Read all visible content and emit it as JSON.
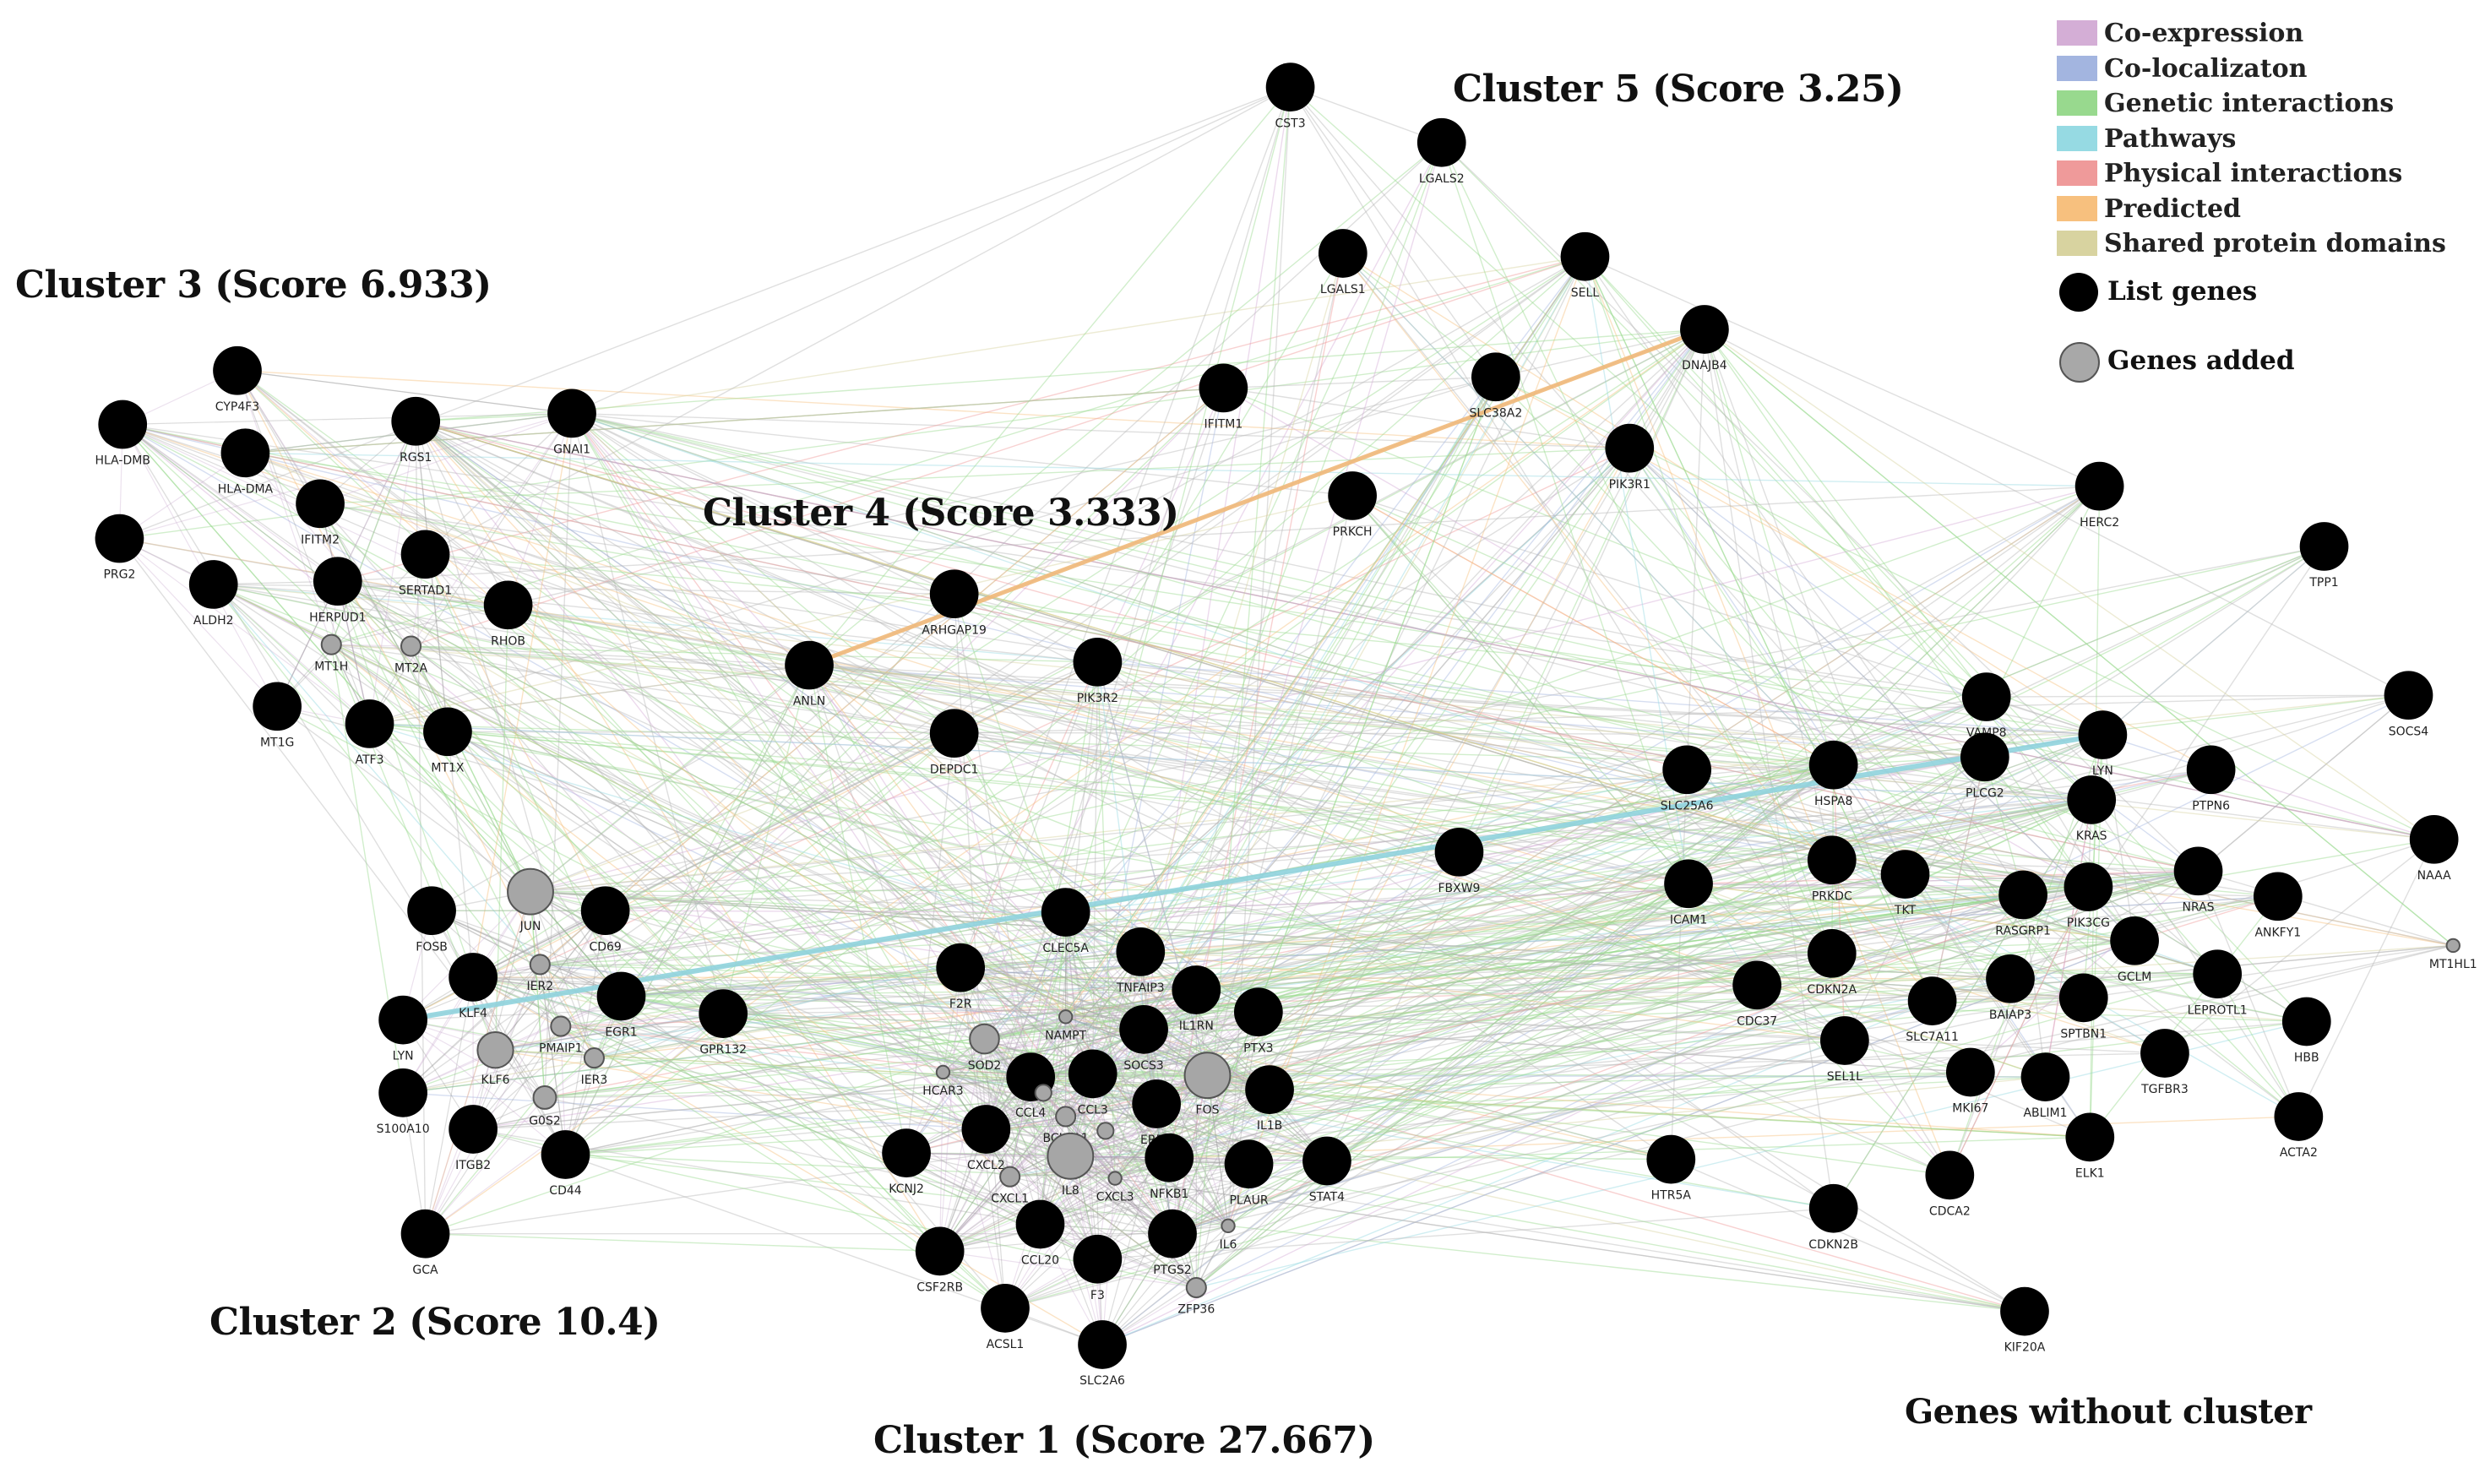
{
  "clusters": {
    "c1": "Cluster 1 (Score 27.667)",
    "c2": "Cluster 2 (Score 10.4)",
    "c3": "Cluster 3 (Score 6.933)",
    "c4": "Cluster 4 (Score 3.333)",
    "c5": "Cluster 5 (Score 3.25)",
    "none": "Genes without cluster"
  },
  "legend": {
    "edge_types": [
      {
        "label": "Co-expression",
        "color": "#d4aed6"
      },
      {
        "label": "Co-localizaton",
        "color": "#a3b5e0"
      },
      {
        "label": "Genetic interactions",
        "color": "#98d98e"
      },
      {
        "label": "Pathways",
        "color": "#96dae3"
      },
      {
        "label": "Physical interactions",
        "color": "#ef9a9a"
      },
      {
        "label": "Predicted",
        "color": "#f7c07e"
      },
      {
        "label": "Shared protein domains",
        "color": "#d8d3a0"
      }
    ],
    "node_types": {
      "list": "List genes",
      "added": "Genes added"
    }
  },
  "genes": {
    "list": [
      "CST3",
      "LGALS2",
      "LGALS1",
      "SELL",
      "DNAJB4",
      "IFITM1",
      "SLC38A2",
      "PIK3R1",
      "PRKCH",
      "HERC2",
      "TPP1",
      "CYP4F3",
      "HLA-DMB",
      "HLA-DMA",
      "RGS1",
      "GNAI1",
      "IFITM2",
      "PRG2",
      "ALDH2",
      "HERPUD1",
      "SERTAD1",
      "RHOB",
      "MT1G",
      "ATF3",
      "MT1X",
      "ARHGAP19",
      "ANLN",
      "PIK3R2",
      "DEPDC1",
      "VAMP8",
      "SOCS4",
      "LYN",
      "SLC25A6",
      "HSPA8",
      "PLCG2",
      "PTPN6",
      "KRAS",
      "NAAA",
      "FBXW9",
      "PRKDC",
      "TKT",
      "RASGRP1",
      "PIK3CG",
      "NRAS",
      "ANKFY1",
      "FOSB",
      "CD69",
      "KLF4",
      "EGR1",
      "GPR132",
      "CLEC5A",
      "F2R",
      "TNFAIP3",
      "IL1RN",
      "PTX3",
      "S100A10",
      "ITGB2",
      "CD44",
      "SOCS3",
      "CCL4",
      "CCL3",
      "EREG",
      "IL1B",
      "KCNJ2",
      "CXCL2",
      "NFKB1",
      "PLAUR",
      "STAT4",
      "CDC37",
      "CDKN2A",
      "SLC7A11",
      "BAIAP3",
      "GCLM",
      "SPTBN1",
      "LEPROTL1",
      "SEL1L",
      "MKI67",
      "ABLIM1",
      "TGFBR3",
      "HBB",
      "ACTA2",
      "ELK1",
      "HTR5A",
      "CDKN2B",
      "CDCA2",
      "GCA",
      "CSF2RB",
      "CCL20",
      "F3",
      "PTGS2",
      "ACSL1",
      "SLC2A6",
      "KIF20A",
      "ICAM1"
    ],
    "added": [
      "MT1H",
      "MT2A",
      "JUN",
      "IER2",
      "KLF6",
      "PMAIP1",
      "IER3",
      "G0S2",
      "NAMPT",
      "SOD2",
      "HCAR3",
      "BCL2A1",
      "IL8",
      "CXCL1",
      "CXCL3",
      "FOS",
      "IL6",
      "ZFP36",
      "MT1HL1"
    ]
  }
}
